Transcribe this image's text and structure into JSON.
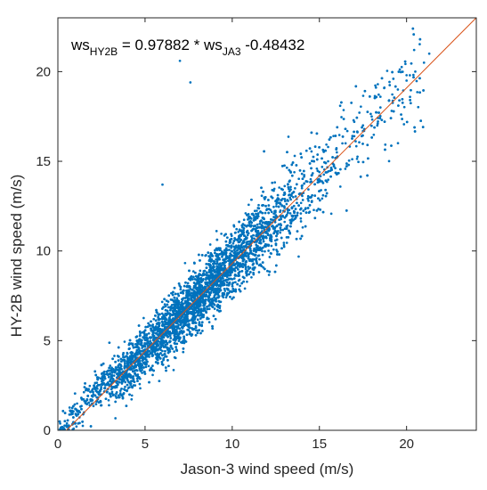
{
  "chart_data": {
    "type": "scatter",
    "title": "",
    "xlabel": "Jason-3 wind speed (m/s)",
    "ylabel": "HY-2B wind speed (m/s)",
    "xlim": [
      0,
      24
    ],
    "ylim": [
      0,
      23
    ],
    "xticks": [
      0,
      5,
      10,
      15,
      20
    ],
    "yticks": [
      0,
      5,
      10,
      15,
      20
    ],
    "xtick_labels": [
      "0",
      "5",
      "10",
      "15",
      "20"
    ],
    "ytick_labels": [
      "0",
      "5",
      "10",
      "15",
      "20"
    ],
    "grid": false,
    "box": true,
    "equation": {
      "lhs": "ws",
      "lhs_sub": "HY2B",
      "middle": " = 0.97882 * ws",
      "rhs_sub": "JA3",
      "tail": " -0.48432"
    },
    "fit_line": {
      "slope": 0.97882,
      "intercept": -0.48432,
      "x_range": [
        0.5,
        24
      ]
    },
    "colors": {
      "points": "#0072BD",
      "fit_line": "#D95319",
      "axes": "#262626"
    },
    "series": [
      {
        "x": [
          0.3,
          0.5,
          1.0,
          1.5,
          2.0,
          2.5,
          3.0,
          3.5,
          4.0,
          4.5,
          5.0,
          5.5,
          6.0,
          6.5,
          7.0,
          7.5,
          8.0,
          8.5,
          9.0,
          9.5,
          10.0,
          10.5,
          11.0,
          11.5,
          12.0,
          12.5,
          13.0,
          13.5,
          14.0,
          14.5,
          15.0,
          15.5,
          16.0,
          16.5,
          17.0,
          17.5,
          18.0,
          18.5,
          19.0,
          19.5,
          20.0,
          20.5,
          21.0,
          21.3,
          7.0,
          7.6,
          6.0,
          1.0,
          2.0,
          3.0,
          4.5,
          5.5,
          6.5,
          8.0,
          9.5,
          11.0,
          12.5,
          14.0,
          15.5,
          17.0,
          18.5,
          20.0,
          3.0,
          4.0,
          5.0,
          6.0,
          7.0,
          8.0,
          9.0,
          10.0,
          11.0,
          12.0,
          13.0,
          14.0,
          15.0,
          16.0
        ],
        "y": [
          0.1,
          0.2,
          0.4,
          1.0,
          1.5,
          2.0,
          2.5,
          3.0,
          3.4,
          4.0,
          4.5,
          5.0,
          5.5,
          6.0,
          6.4,
          7.0,
          7.5,
          8.0,
          8.4,
          9.0,
          9.5,
          10.0,
          10.4,
          11.0,
          11.5,
          12.0,
          12.4,
          13.0,
          13.5,
          14.0,
          14.4,
          15.0,
          15.5,
          16.0,
          16.4,
          17.0,
          17.5,
          18.0,
          18.4,
          19.0,
          19.5,
          20.0,
          20.5,
          21.0,
          20.6,
          19.4,
          13.7,
          1.2,
          2.3,
          3.6,
          4.8,
          6.2,
          6.9,
          8.5,
          9.8,
          11.4,
          12.8,
          14.3,
          15.8,
          17.2,
          18.6,
          19.8,
          2.0,
          3.0,
          4.0,
          5.2,
          6.2,
          7.2,
          8.2,
          9.2,
          10.2,
          11.2,
          12.2,
          13.2,
          14.2,
          15.2
        ]
      }
    ]
  }
}
